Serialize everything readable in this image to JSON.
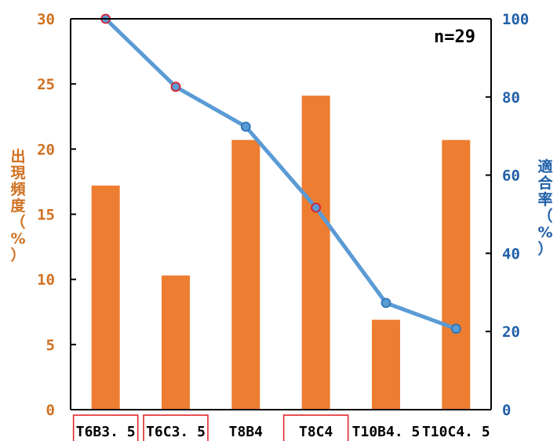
{
  "chart_data": {
    "type": "bar",
    "annotation": "n=29",
    "categories": [
      "T6B3.5",
      "T6C3.5",
      "T8B4",
      "T8C4",
      "T10B4.5",
      "T10C4.5"
    ],
    "category_labels": [
      "T6B3. 5",
      "T6C3. 5",
      "T8B4",
      "T8C4",
      "T10B4. 5",
      "T10C4. 5"
    ],
    "boxed_categories": [
      0,
      1,
      3
    ],
    "boxed_color": "#e0262a",
    "series": [
      {
        "type": "bar",
        "axis": "left",
        "color": "#ed7d31",
        "values": [
          17.2,
          10.3,
          20.7,
          24.1,
          6.9,
          20.7
        ]
      },
      {
        "type": "line",
        "axis": "right",
        "color": "#5b9bd5",
        "marker_fill": "#5b9bd5",
        "values": [
          100,
          82.6,
          72.4,
          51.7,
          27.3,
          20.7
        ],
        "marker_edge_colors": [
          "#d62030",
          "#d62030",
          "#2e75b6",
          "#d62030",
          "#2e75b6",
          "#2e75b6"
        ]
      }
    ],
    "y_left": {
      "label_chars": [
        "出",
        "現",
        "頻",
        "度",
        "（",
        "%",
        "）"
      ],
      "ylim": [
        0,
        30
      ],
      "ticks": [
        "0",
        "5",
        "10",
        "15",
        "20",
        "25",
        "30"
      ],
      "color": "#d07020"
    },
    "y_right": {
      "label_chars": [
        "適",
        "合",
        "率",
        "（",
        "%",
        "）"
      ],
      "ylim": [
        0,
        100
      ],
      "ticks": [
        "0",
        "20",
        "40",
        "60",
        "80",
        "100"
      ],
      "color": "#1f5fa8"
    },
    "grid": false,
    "legend": "none"
  }
}
